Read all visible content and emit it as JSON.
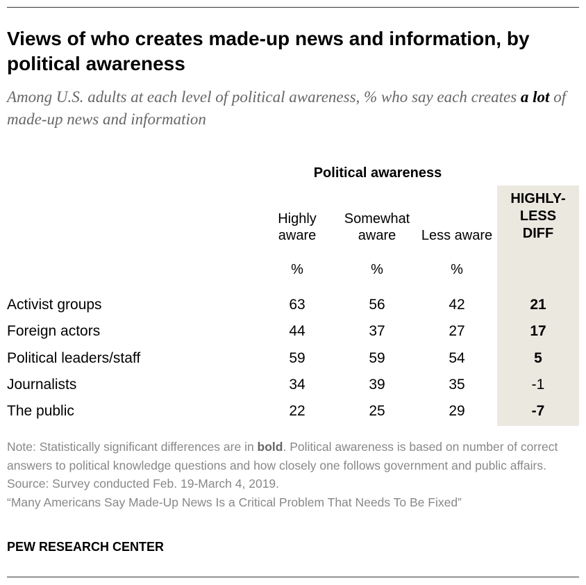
{
  "title": "Views of who creates made-up news and information, by political awareness",
  "subtitle_before": "Among U.S. adults at each level of political awareness, % who say each creates ",
  "subtitle_bold": "a lot",
  "subtitle_after": " of made-up news and information",
  "chart_data": {
    "type": "table",
    "group_header": "Political awareness",
    "columns": [
      {
        "line1": "Highly",
        "line2": "aware",
        "unit": "%"
      },
      {
        "line1": "Somewhat",
        "line2": "aware",
        "unit": "%"
      },
      {
        "line1": "",
        "line2": "Less aware",
        "unit": "%"
      }
    ],
    "diff_header": {
      "line1": "HIGHLY-",
      "line2": "LESS",
      "line3": "DIFF"
    },
    "rows": [
      {
        "label": "Activist groups",
        "values": [
          63,
          56,
          42
        ],
        "diff": "21",
        "significant": true
      },
      {
        "label": "Foreign actors",
        "values": [
          44,
          37,
          27
        ],
        "diff": "17",
        "significant": true
      },
      {
        "label": "Political leaders/staff",
        "values": [
          59,
          59,
          54
        ],
        "diff": "5",
        "significant": true
      },
      {
        "label": "Journalists",
        "values": [
          34,
          39,
          35
        ],
        "diff": "-1",
        "significant": false
      },
      {
        "label": "The public",
        "values": [
          22,
          25,
          29
        ],
        "diff": "-7",
        "significant": true
      }
    ]
  },
  "notes": {
    "note_before": "Note: Statistically significant differences are in ",
    "note_bold": "bold",
    "note_after": ". Political awareness is based on number of correct answers to political knowledge questions and how closely one follows government and public affairs.",
    "source": "Source: Survey conducted Feb. 19-March 4, 2019.",
    "report": "“Many Americans Say Made-Up News Is a Critical Problem That Needs To Be Fixed”"
  },
  "org": "PEW RESEARCH CENTER",
  "colors": {
    "diff_background": "#ebe8e0",
    "note_text": "#888888",
    "subtitle_text": "#666666"
  }
}
